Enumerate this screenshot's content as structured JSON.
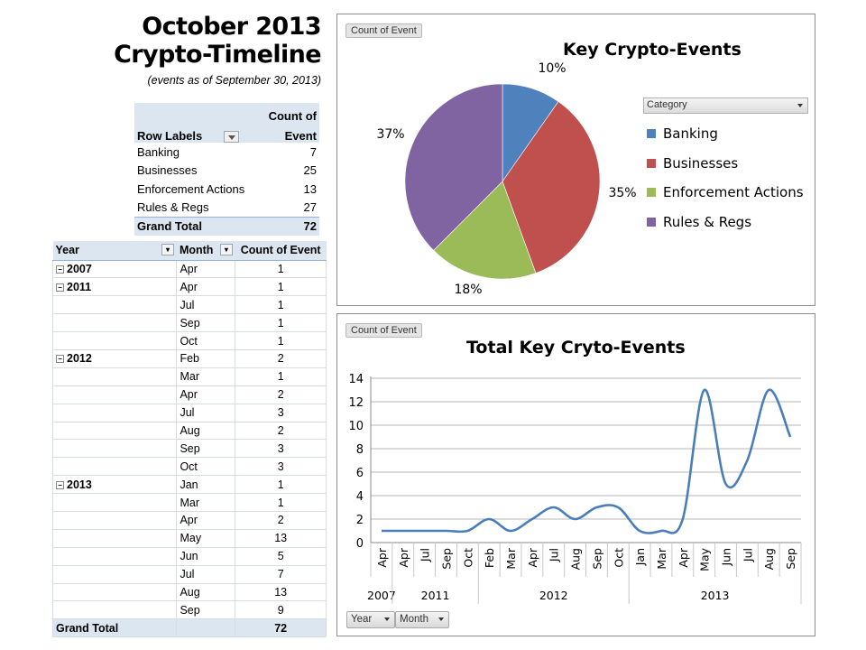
{
  "title": {
    "line1": "October 2013",
    "line2": "Crypto-Timeline",
    "subtitle": "(events as of September 30, 2013)"
  },
  "category_table": {
    "header_labels": "Row Labels",
    "header_value_line1": "Count of",
    "header_value_line2": "Event",
    "rows": [
      {
        "label": "Banking",
        "value": "7"
      },
      {
        "label": "Businesses",
        "value": "25"
      },
      {
        "label": "Enforcement Actions",
        "value": "13"
      },
      {
        "label": "Rules & Regs",
        "value": "27"
      }
    ],
    "total_label": "Grand Total",
    "total_value": "72"
  },
  "timeline_table": {
    "col_year": "Year",
    "col_month": "Month",
    "col_count": "Count of Event",
    "rows": [
      {
        "year": "2007",
        "month": "Apr",
        "count": "1"
      },
      {
        "year": "2011",
        "month": "Apr",
        "count": "1"
      },
      {
        "year": "",
        "month": "Jul",
        "count": "1"
      },
      {
        "year": "",
        "month": "Sep",
        "count": "1"
      },
      {
        "year": "",
        "month": "Oct",
        "count": "1"
      },
      {
        "year": "2012",
        "month": "Feb",
        "count": "2"
      },
      {
        "year": "",
        "month": "Mar",
        "count": "1"
      },
      {
        "year": "",
        "month": "Apr",
        "count": "2"
      },
      {
        "year": "",
        "month": "Jul",
        "count": "3"
      },
      {
        "year": "",
        "month": "Aug",
        "count": "2"
      },
      {
        "year": "",
        "month": "Sep",
        "count": "3"
      },
      {
        "year": "",
        "month": "Oct",
        "count": "3"
      },
      {
        "year": "2013",
        "month": "Jan",
        "count": "1"
      },
      {
        "year": "",
        "month": "Mar",
        "count": "1"
      },
      {
        "year": "",
        "month": "Apr",
        "count": "2"
      },
      {
        "year": "",
        "month": "May",
        "count": "13"
      },
      {
        "year": "",
        "month": "Jun",
        "count": "5"
      },
      {
        "year": "",
        "month": "Jul",
        "count": "7"
      },
      {
        "year": "",
        "month": "Aug",
        "count": "13"
      },
      {
        "year": "",
        "month": "Sep",
        "count": "9"
      }
    ],
    "total_label": "Grand Total",
    "total_value": "72"
  },
  "pie_chart": {
    "field_button": "Count of Event",
    "category_dropdown": "Category"
  },
  "line_chart": {
    "field_button": "Count of Event",
    "year_dropdown": "Year",
    "month_dropdown": "Month"
  },
  "chart_data": [
    {
      "type": "pie",
      "title": "Key Crypto-Events",
      "categories": [
        "Banking",
        "Businesses",
        "Enforcement Actions",
        "Rules & Regs"
      ],
      "values": [
        7,
        25,
        13,
        27
      ],
      "labels": [
        "10%",
        "35%",
        "18%",
        "37%"
      ],
      "colors": [
        "#4f81bd",
        "#c0504d",
        "#9bbb59",
        "#8064a2"
      ],
      "legend": "right"
    },
    {
      "type": "line",
      "title": "Total Key Cryto-Events",
      "x": [
        "Apr",
        "Apr",
        "Jul",
        "Sep",
        "Oct",
        "Feb",
        "Mar",
        "Apr",
        "Jul",
        "Aug",
        "Sep",
        "Oct",
        "Jan",
        "Mar",
        "Apr",
        "May",
        "Jun",
        "Jul",
        "Aug",
        "Sep"
      ],
      "year_groups": [
        {
          "label": "2007",
          "count": 1
        },
        {
          "label": "2011",
          "count": 4
        },
        {
          "label": "2012",
          "count": 7
        },
        {
          "label": "2013",
          "count": 8
        }
      ],
      "values": [
        1,
        1,
        1,
        1,
        1,
        2,
        1,
        2,
        3,
        2,
        3,
        3,
        1,
        1,
        2,
        13,
        5,
        7,
        13,
        9
      ],
      "ylim": [
        0,
        14
      ],
      "yticks": [
        0,
        2,
        4,
        6,
        8,
        10,
        12,
        14
      ],
      "grid": true,
      "color": "#4a7ebb",
      "legend": "none"
    }
  ]
}
